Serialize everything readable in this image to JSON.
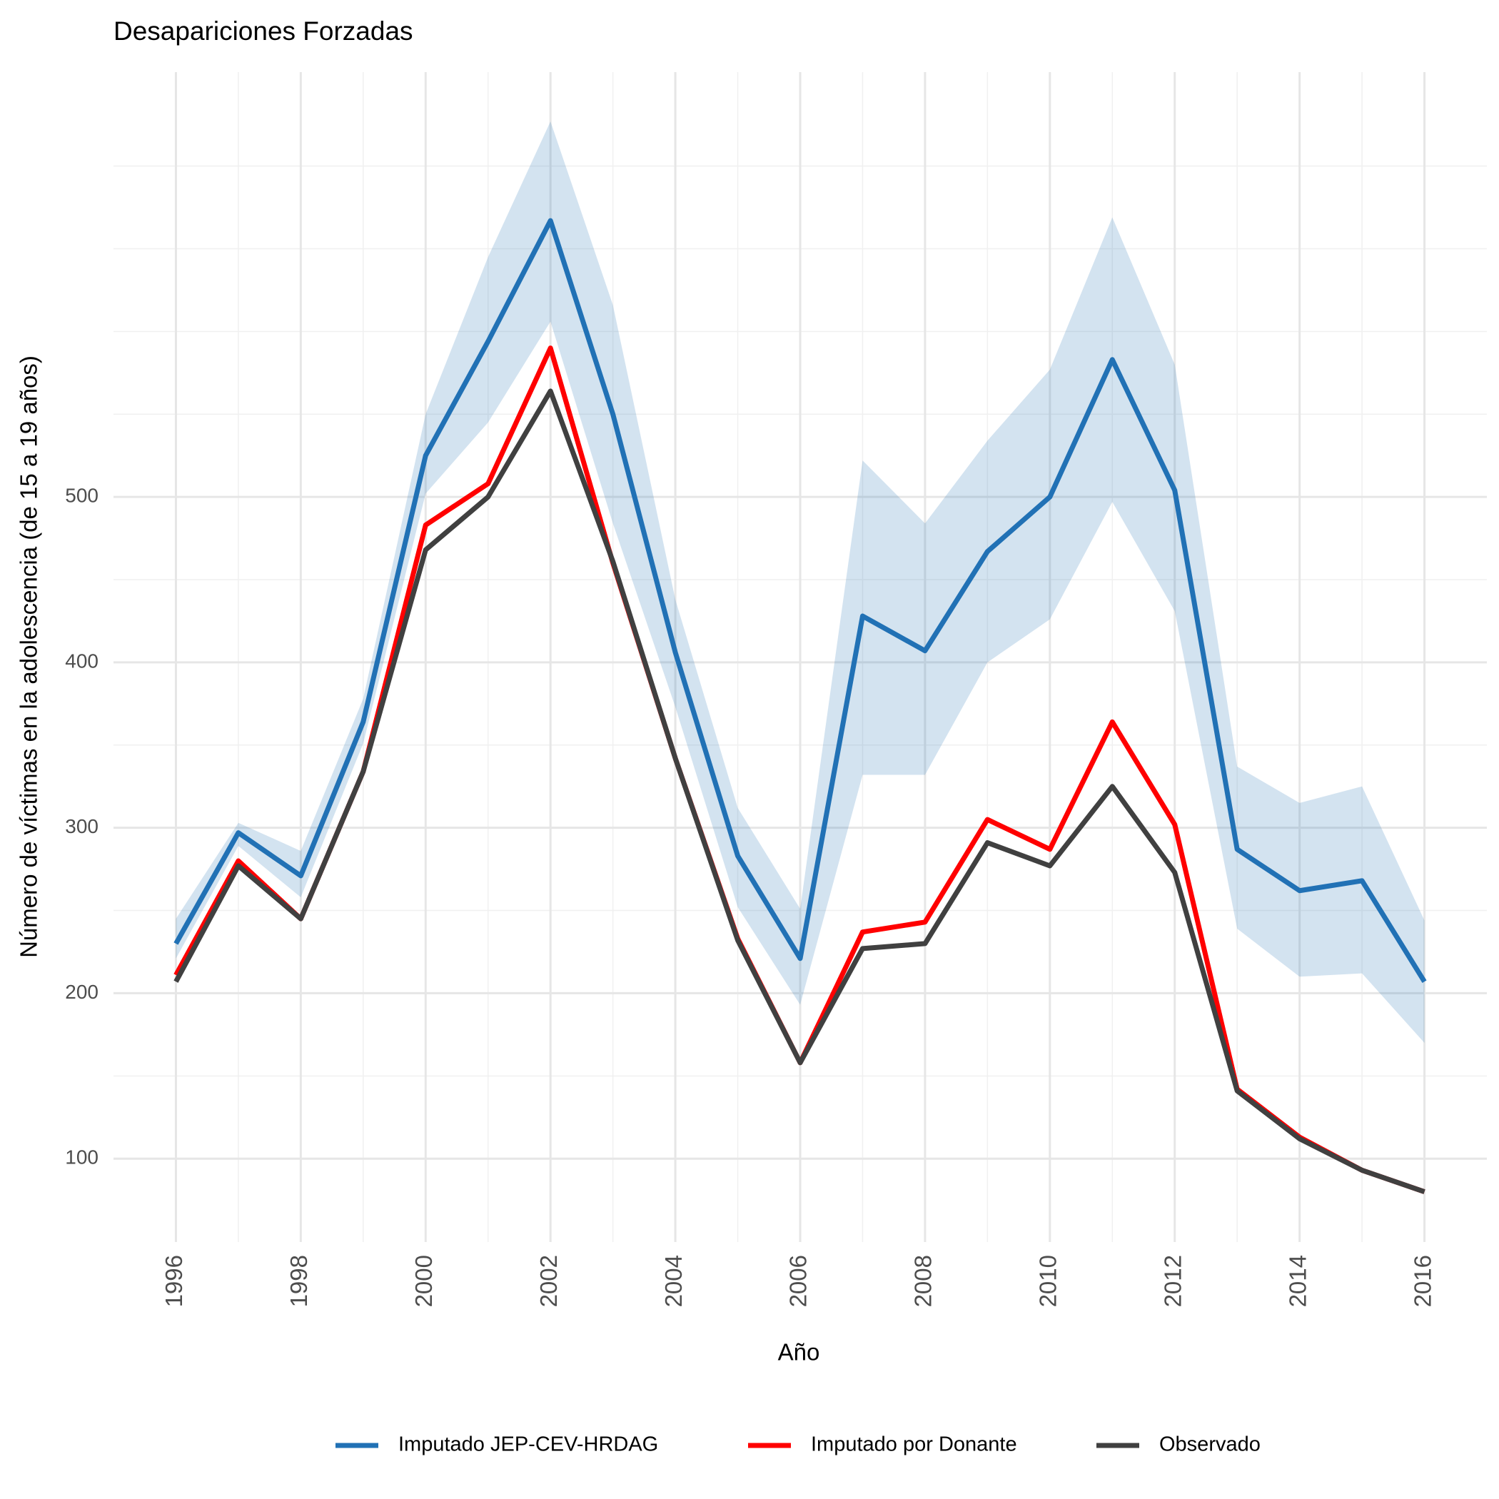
{
  "chart_data": {
    "type": "line",
    "title": "Desapariciones Forzadas",
    "x_label": "Año",
    "y_label": "Número de víctimas en la adolescencia (de 15 a 19 años)",
    "x": [
      1996,
      1997,
      1998,
      1999,
      2000,
      2001,
      2002,
      2003,
      2004,
      2005,
      2006,
      2007,
      2008,
      2009,
      2010,
      2011,
      2012,
      2013,
      2014,
      2015,
      2016
    ],
    "xlim": [
      1995,
      2017
    ],
    "xticks": [
      1996,
      1998,
      2000,
      2002,
      2004,
      2006,
      2008,
      2010,
      2012,
      2014,
      2016
    ],
    "x_minor_grid": [
      1997,
      1999,
      2001,
      2003,
      2005,
      2007,
      2009,
      2011,
      2013,
      2015
    ],
    "ylim": [
      49.6,
      756.8
    ],
    "yticks": [
      100,
      200,
      300,
      400,
      500
    ],
    "y_minor_grid": [
      150,
      250,
      350,
      450,
      550,
      600,
      650,
      700
    ],
    "grid": true,
    "legend": "bottom",
    "series": [
      {
        "name": "Imputado JEP-CEV-HRDAG",
        "color": "#2171b5",
        "band_color": "rgba(33,113,181,0.2)",
        "values": [
          230,
          297,
          271,
          364,
          525,
          594,
          667,
          550,
          406,
          283,
          221,
          428,
          407,
          467,
          500,
          583,
          504,
          287,
          262,
          268,
          207
        ],
        "upper": [
          245,
          303,
          286,
          378,
          550,
          645,
          727,
          616,
          438,
          312,
          251,
          522,
          484,
          534,
          577,
          669,
          580,
          337,
          315,
          325,
          244
        ],
        "lower": [
          221,
          289,
          258,
          351,
          502,
          545,
          606,
          484,
          373,
          252,
          193,
          332,
          332,
          400,
          426,
          497,
          431,
          239,
          210,
          212,
          170
        ]
      },
      {
        "name": "Imputado por Donante",
        "color": "#ff0000",
        "values": [
          211,
          280,
          245,
          334,
          483,
          508,
          590,
          460,
          342,
          233,
          158,
          237,
          243,
          305,
          287,
          364,
          302,
          142,
          113,
          93,
          80
        ]
      },
      {
        "name": "Observado",
        "color": "#404040",
        "values": [
          207,
          277,
          245,
          334,
          468,
          500,
          564,
          461,
          342,
          232,
          158,
          227,
          230,
          291,
          277,
          325,
          273,
          141,
          112,
          93,
          80
        ]
      }
    ]
  }
}
